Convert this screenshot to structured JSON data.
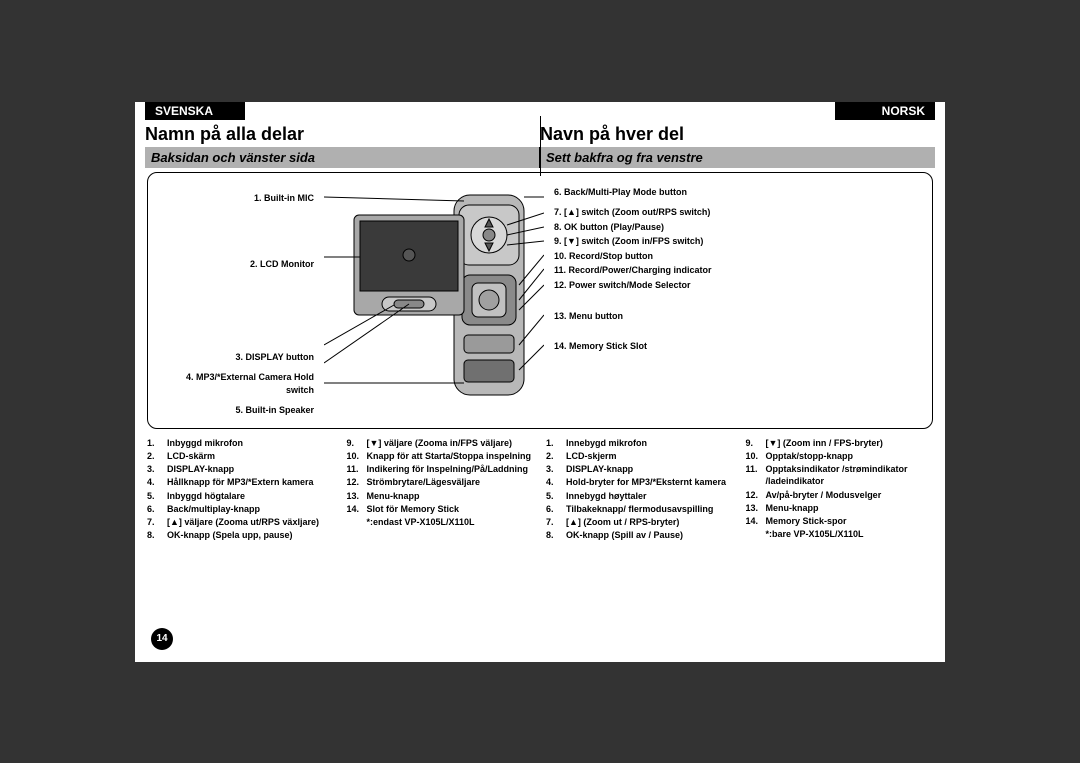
{
  "langs": {
    "left": "SVENSKA",
    "right": "NORSK"
  },
  "titles": {
    "left": "Namn på alla delar",
    "right": "Navn på hver del"
  },
  "subtitles": {
    "left": "Baksidan och vänster sida",
    "right": "Sett bakfra og fra venstre"
  },
  "diagram_left_labels": {
    "l1": "1. Built-in MIC",
    "l2": "2. LCD Monitor",
    "l3": "3. DISPLAY button",
    "l4": "4. MP3/*External Camera  Hold switch",
    "l5": "5. Built-in Speaker"
  },
  "diagram_right_labels": {
    "r6": "6. Back/Multi-Play Mode button",
    "r7": "7. [▲] switch (Zoom out/RPS switch)",
    "r8": "8. OK button (Play/Pause)",
    "r9": "9. [▼] switch (Zoom in/FPS switch)",
    "r10": "10. Record/Stop button",
    "r11": "11. Record/Power/Charging indicator",
    "r12": "12. Power switch/Mode Selector",
    "r13": "13. Menu button",
    "r14": "14. Memory Stick Slot"
  },
  "sv_col1": [
    {
      "n": "1.",
      "t": "Inbyggd mikrofon"
    },
    {
      "n": "2.",
      "t": "LCD-skärm"
    },
    {
      "n": "3.",
      "t": "DISPLAY-knapp"
    },
    {
      "n": "4.",
      "t": "Hållknapp för MP3/*Extern kamera"
    },
    {
      "n": "5.",
      "t": "Inbyggd högtalare"
    },
    {
      "n": "6.",
      "t": "Back/multiplay-knapp"
    },
    {
      "n": "7.",
      "t": "[▲] väljare (Zooma ut/RPS växljare)"
    },
    {
      "n": "8.",
      "t": "OK-knapp (Spela upp, pause)"
    }
  ],
  "sv_col2": [
    {
      "n": "9.",
      "t": "[▼] väljare (Zooma in/FPS väljare)"
    },
    {
      "n": "10.",
      "t": "Knapp för att Starta/Stoppa inspelning"
    },
    {
      "n": "11.",
      "t": "Indikering för Inspelning/På/Laddning"
    },
    {
      "n": "12.",
      "t": "Strömbrytare/Lägesväljare"
    },
    {
      "n": "13.",
      "t": "Menu-knapp"
    },
    {
      "n": "14.",
      "t": "Slot för Memory Stick"
    },
    {
      "n": "",
      "t": "*:endast VP-X105L/X110L"
    }
  ],
  "no_col1": [
    {
      "n": "1.",
      "t": "Innebygd mikrofon"
    },
    {
      "n": "2.",
      "t": "LCD-skjerm"
    },
    {
      "n": "3.",
      "t": "DISPLAY-knapp"
    },
    {
      "n": "4.",
      "t": "Hold-bryter for MP3/*Eksternt kamera"
    },
    {
      "n": "5.",
      "t": "Innebygd høyttaler"
    },
    {
      "n": "6.",
      "t": "Tilbakeknapp/ flermodusavspilling"
    },
    {
      "n": "7.",
      "t": "[▲] (Zoom ut / RPS-bryter)"
    },
    {
      "n": "8.",
      "t": "OK-knapp (Spill av / Pause)"
    }
  ],
  "no_col2": [
    {
      "n": "9.",
      "t": "[▼] (Zoom inn / FPS-bryter)"
    },
    {
      "n": "10.",
      "t": "Opptak/stopp-knapp"
    },
    {
      "n": "11.",
      "t": "Opptaksindikator /strømindikator /ladeindikator"
    },
    {
      "n": "12.",
      "t": "Av/på-bryter / Modusvelger"
    },
    {
      "n": "13.",
      "t": "Menu-knapp"
    },
    {
      "n": "14.",
      "t": "Memory Stick-spor"
    },
    {
      "n": "",
      "t": "*:bare VP-X105L/X110L"
    }
  ],
  "pagenum": "14",
  "colors": {
    "bg_outer": "#333333",
    "bg_page": "#ffffff",
    "tab_bg": "#000000",
    "tab_fg": "#ffffff",
    "subtitle_bg": "#b0b0b0",
    "camera_body": "#b8b8b8",
    "camera_dark": "#6f6f6f",
    "camera_screen": "#3a3a3a"
  }
}
